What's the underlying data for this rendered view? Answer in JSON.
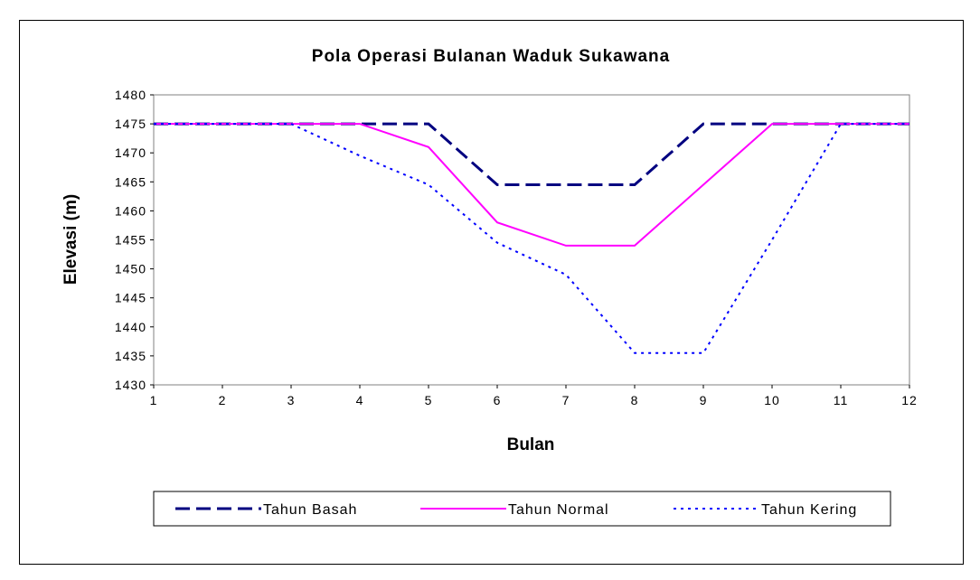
{
  "chart_data": {
    "type": "line",
    "title": "Pola Operasi Bulanan Waduk Sukawana",
    "xlabel": "Bulan",
    "ylabel": "Elevasi (m)",
    "x": [
      1,
      2,
      3,
      4,
      5,
      6,
      7,
      8,
      9,
      10,
      11,
      12
    ],
    "xlim": [
      1,
      12
    ],
    "ylim": [
      1430,
      1480
    ],
    "yticks": [
      1430,
      1435,
      1440,
      1445,
      1450,
      1455,
      1460,
      1465,
      1470,
      1475,
      1480
    ],
    "grid": false,
    "legend_position": "bottom",
    "series": [
      {
        "name": "Tahun Basah",
        "color": "#000080",
        "dash": "long-dash",
        "values": [
          1475,
          1475,
          1475,
          1475,
          1475,
          1464.5,
          1464.5,
          1464.5,
          1475,
          1475,
          1475,
          1475
        ]
      },
      {
        "name": "Tahun Normal",
        "color": "#ff00ff",
        "dash": "solid",
        "values": [
          1475,
          1475,
          1475,
          1475,
          1471,
          1458,
          1454,
          1454,
          1464.5,
          1475,
          1475,
          1475
        ]
      },
      {
        "name": "Tahun Kering",
        "color": "#0000ff",
        "dash": "dotted",
        "values": [
          1475,
          1475,
          1475,
          1469.5,
          1464.5,
          1454.5,
          1449,
          1435.5,
          1435.5,
          1455,
          1475,
          1475
        ]
      }
    ]
  }
}
